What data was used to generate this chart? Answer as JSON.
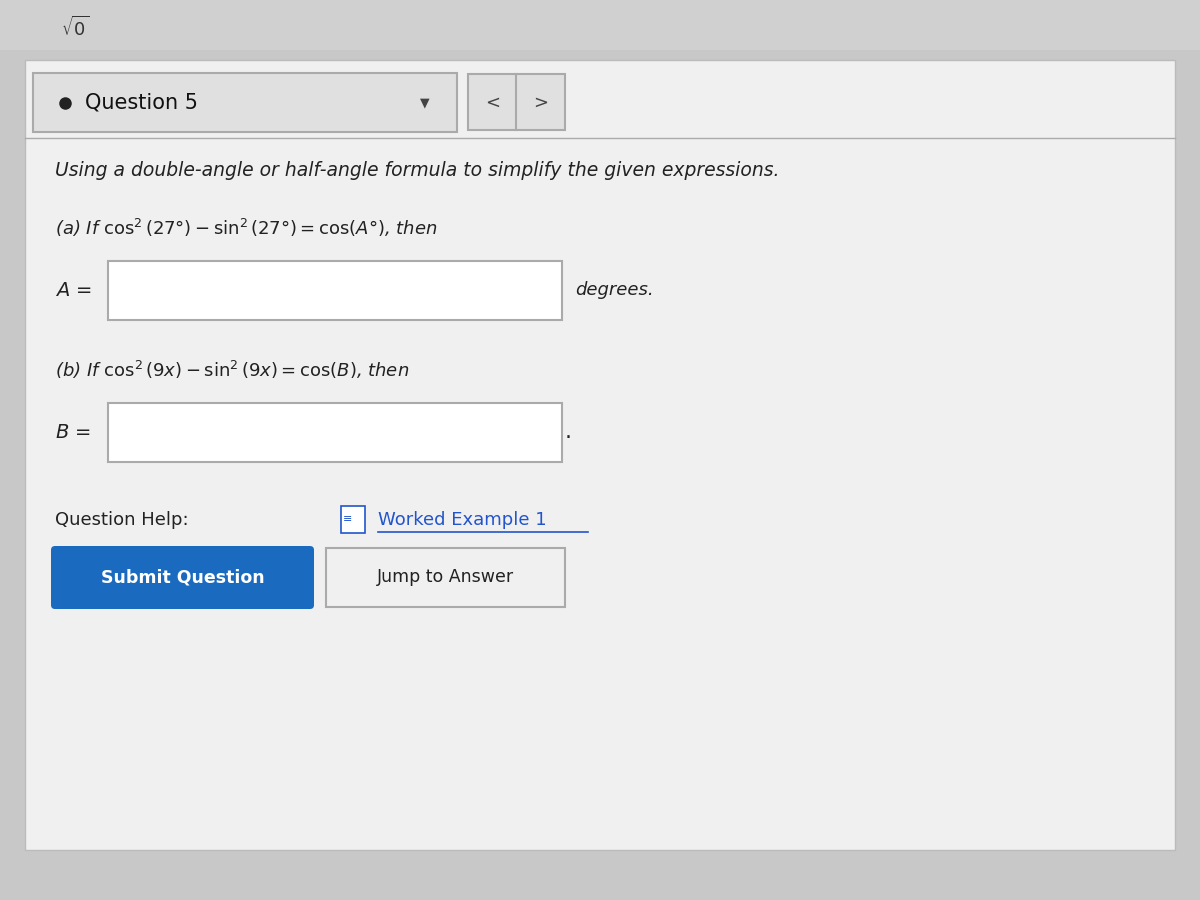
{
  "bg_color": "#c8c8c8",
  "content_bg": "#f0f0f0",
  "question_header_text": "Question 5",
  "instruction_text": "Using a double-angle or half-angle formula to simplify the given expressions.",
  "part_a_suffix": "degrees.",
  "part_b_label": "B =",
  "question_help_text": "Question Help:",
  "worked_example_text": "Worked Example 1",
  "submit_btn_text": "Submit Question",
  "submit_btn_color": "#1a6bbf",
  "submit_btn_text_color": "#ffffff",
  "jump_btn_text": "Jump to Answer",
  "input_box_color": "#ffffff",
  "input_border_color": "#aaaaaa",
  "divider_color": "#aaaaaa",
  "text_color": "#222222",
  "link_color": "#2255cc"
}
